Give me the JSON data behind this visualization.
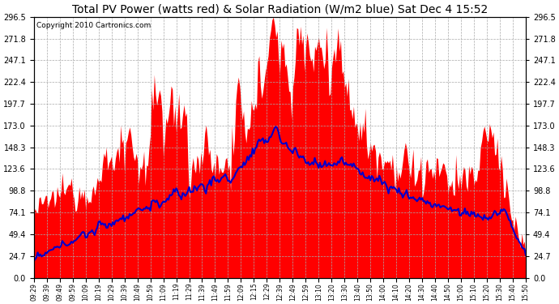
{
  "title": "Total PV Power (watts red) & Solar Radiation (W/m2 blue) Sat Dec 4 15:52",
  "copyright_text": "Copyright 2010 Cartronics.com",
  "yticks": [
    0.0,
    24.7,
    49.4,
    74.1,
    98.8,
    123.6,
    148.3,
    173.0,
    197.7,
    222.4,
    247.1,
    271.8,
    296.5
  ],
  "ymax": 296.5,
  "ymin": 0.0,
  "xtick_labels": [
    "09:29",
    "09:39",
    "09:49",
    "09:59",
    "10:09",
    "10:19",
    "10:29",
    "10:39",
    "10:49",
    "10:59",
    "11:09",
    "11:19",
    "11:29",
    "11:39",
    "11:49",
    "11:59",
    "12:09",
    "12:15",
    "12:29",
    "12:39",
    "12:49",
    "12:59",
    "13:10",
    "13:20",
    "13:30",
    "13:40",
    "13:50",
    "14:00",
    "14:10",
    "14:20",
    "14:30",
    "14:40",
    "14:50",
    "15:00",
    "15:10",
    "15:20",
    "15:30",
    "15:40",
    "15:50"
  ],
  "bg_color": "#ffffff",
  "plot_bg_color": "#ffffff",
  "grid_color": "#aaaaaa",
  "red_color": "#ff0000",
  "blue_color": "#0000cc",
  "title_fontsize": 10,
  "copyright_fontsize": 6.5,
  "left_ytick_labels": [
    "0.0",
    "24.7",
    "49.4",
    "74.1",
    "98.8",
    "123.6",
    "148.3",
    "173.0",
    "197.7",
    "222.4",
    "247.1",
    "271.8",
    "296.5"
  ]
}
